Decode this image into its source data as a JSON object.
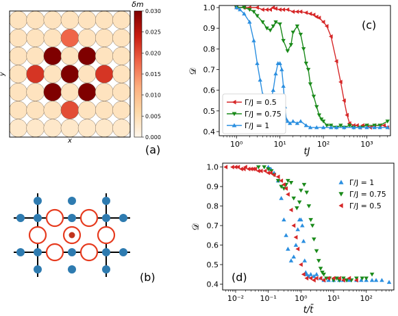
{
  "panels": {
    "a": {
      "label": "(a)",
      "xlabel": "x",
      "ylabel": "y",
      "colorbar": {
        "label": "δm",
        "ticks": [
          "0.030",
          "0.025",
          "0.020",
          "0.015",
          "0.010",
          "0.005",
          "0.000"
        ]
      }
    },
    "b": {
      "label": "(b)"
    },
    "c": {
      "label": "(c)",
      "xlabel": "tJ",
      "ylabel": "𝒟",
      "xticks": [
        "10⁰",
        "10¹",
        "10²",
        "10³"
      ],
      "yticks": [
        "0.4",
        "0.5",
        "0.6",
        "0.7",
        "0.8",
        "0.9",
        "1.0"
      ],
      "legend": [
        "Γ/J = 0.5",
        "Γ/J = 0.75",
        "Γ/J = 1"
      ]
    },
    "d": {
      "label": "(d)",
      "xlabel": "t/t̄",
      "ylabel": "𝒟",
      "xticks": [
        "10⁻²",
        "10⁻¹",
        "10⁰",
        "10¹",
        "10²"
      ],
      "yticks": [
        "0.4",
        "0.5",
        "0.6",
        "0.7",
        "0.8",
        "0.9",
        "1.0"
      ],
      "legend": [
        "Γ/J = 1",
        "Γ/J = 0.75",
        "Γ/J = 0.5"
      ]
    }
  },
  "colors": {
    "red": "#d62728",
    "green": "#1a8a1a",
    "blue": "#2b8fe0",
    "lattice_node": "#2e7bb0",
    "ring": "#e63a1e",
    "center_dot": "#c0341d"
  },
  "chart_data": [
    {
      "type": "heatmap",
      "title": "",
      "xlabel": "x",
      "ylabel": "y",
      "colorbar_label": "δm",
      "colorbar_range": [
        0.0,
        0.03
      ],
      "grid_size": [
        7,
        7
      ],
      "values": [
        [
          0.004,
          0.004,
          0.004,
          0.004,
          0.004,
          0.004,
          0.004
        ],
        [
          0.004,
          0.004,
          0.004,
          0.018,
          0.004,
          0.004,
          0.004
        ],
        [
          0.004,
          0.004,
          0.03,
          0.004,
          0.03,
          0.004,
          0.004
        ],
        [
          0.004,
          0.022,
          0.004,
          0.03,
          0.004,
          0.022,
          0.004
        ],
        [
          0.004,
          0.004,
          0.03,
          0.004,
          0.03,
          0.004,
          0.004
        ],
        [
          0.004,
          0.004,
          0.004,
          0.02,
          0.004,
          0.004,
          0.004
        ],
        [
          0.003,
          0.003,
          0.003,
          0.003,
          0.003,
          0.003,
          0.003
        ]
      ]
    },
    {
      "type": "line",
      "title": "",
      "xlabel": "tJ",
      "ylabel": "𝒟",
      "xscale": "log",
      "xlim": [
        0.4,
        3500
      ],
      "ylim": [
        0.38,
        1.01
      ],
      "legend_position": "bottom-left",
      "series": [
        {
          "name": "Γ/J = 0.5",
          "color": "#d62728",
          "marker": "triangle-left",
          "x": [
            1,
            1.5,
            2,
            3,
            4,
            5,
            6,
            7,
            8,
            10,
            12,
            15,
            20,
            25,
            30,
            40,
            50,
            60,
            70,
            80,
            100,
            120,
            150,
            200,
            250,
            300,
            350,
            400,
            500,
            600,
            700,
            800,
            1000,
            1200,
            1500,
            2000,
            2500,
            3000
          ],
          "y": [
            1.0,
            1.0,
            1.0,
            1.0,
            0.99,
            0.99,
            0.99,
            1.0,
            0.995,
            0.99,
            0.99,
            0.99,
            0.98,
            0.98,
            0.98,
            0.975,
            0.97,
            0.965,
            0.955,
            0.95,
            0.93,
            0.91,
            0.86,
            0.74,
            0.64,
            0.55,
            0.48,
            0.44,
            0.43,
            0.43,
            0.42,
            0.43,
            0.43,
            0.42,
            0.43,
            0.43,
            0.43,
            0.42
          ]
        },
        {
          "name": "Γ/J = 0.75",
          "color": "#1a8a1a",
          "marker": "triangle-down",
          "x": [
            1,
            1.5,
            2,
            2.5,
            3,
            4,
            5,
            6,
            7,
            8,
            10,
            12,
            15,
            18,
            20,
            25,
            30,
            35,
            40,
            45,
            50,
            60,
            70,
            80,
            90,
            100,
            120,
            150,
            200,
            250,
            300,
            400,
            500,
            700,
            1000,
            1500,
            2000,
            3000
          ],
          "y": [
            1.0,
            1.0,
            0.99,
            0.98,
            0.96,
            0.93,
            0.9,
            0.89,
            0.91,
            0.93,
            0.92,
            0.84,
            0.79,
            0.82,
            0.88,
            0.91,
            0.87,
            0.8,
            0.73,
            0.7,
            0.63,
            0.57,
            0.52,
            0.48,
            0.46,
            0.45,
            0.43,
            0.43,
            0.42,
            0.43,
            0.42,
            0.43,
            0.42,
            0.42,
            0.43,
            0.43,
            0.43,
            0.45
          ]
        },
        {
          "name": "Γ/J = 1",
          "color": "#2b8fe0",
          "marker": "triangle-up",
          "x": [
            1,
            1.2,
            1.5,
            2,
            2.5,
            3,
            3.5,
            4,
            5,
            6,
            7,
            8,
            9,
            10,
            11,
            12,
            13,
            14,
            15,
            17,
            20,
            25,
            30,
            40,
            50,
            70,
            100,
            150,
            200,
            300,
            500,
            700,
            1000,
            1500,
            2000,
            3000
          ],
          "y": [
            1.0,
            0.99,
            0.97,
            0.93,
            0.84,
            0.73,
            0.65,
            0.58,
            0.52,
            0.54,
            0.6,
            0.68,
            0.73,
            0.73,
            0.7,
            0.62,
            0.52,
            0.46,
            0.45,
            0.44,
            0.45,
            0.44,
            0.45,
            0.43,
            0.42,
            0.42,
            0.42,
            0.42,
            0.42,
            0.42,
            0.42,
            0.42,
            0.42,
            0.42,
            0.42,
            0.42
          ]
        }
      ]
    },
    {
      "type": "scatter",
      "title": "",
      "xlabel": "t/t̄",
      "ylabel": "𝒟",
      "xscale": "log",
      "xlim": [
        0.004,
        700
      ],
      "ylim": [
        0.37,
        1.02
      ],
      "legend_position": "top-right",
      "series": [
        {
          "name": "Γ/J = 1",
          "color": "#2b8fe0",
          "marker": "triangle-up",
          "x": [
            0.1,
            0.12,
            0.15,
            0.2,
            0.25,
            0.3,
            0.35,
            0.4,
            0.5,
            0.6,
            0.7,
            0.8,
            0.9,
            1.0,
            1.1,
            1.2,
            1.3,
            1.4,
            1.5,
            1.7,
            2,
            2.5,
            3,
            4,
            5,
            7,
            10,
            15,
            20,
            30,
            50,
            70,
            100,
            150,
            200,
            300,
            500
          ],
          "y": [
            1.0,
            0.99,
            0.97,
            0.93,
            0.84,
            0.73,
            0.65,
            0.58,
            0.52,
            0.54,
            0.6,
            0.68,
            0.73,
            0.73,
            0.7,
            0.62,
            0.52,
            0.46,
            0.45,
            0.44,
            0.45,
            0.44,
            0.45,
            0.43,
            0.42,
            0.42,
            0.42,
            0.42,
            0.42,
            0.42,
            0.42,
            0.42,
            0.42,
            0.42,
            0.42,
            0.42,
            0.41
          ]
        },
        {
          "name": "Γ/J = 0.75",
          "color": "#1a8a1a",
          "marker": "triangle-down",
          "x": [
            0.05,
            0.075,
            0.1,
            0.125,
            0.15,
            0.2,
            0.25,
            0.3,
            0.35,
            0.4,
            0.5,
            0.6,
            0.75,
            0.9,
            1.0,
            1.25,
            1.5,
            1.75,
            2,
            2.25,
            2.5,
            3,
            3.5,
            4,
            4.5,
            5,
            6,
            7.5,
            10,
            12.5,
            15,
            20,
            25,
            35,
            50,
            75,
            100,
            150
          ],
          "y": [
            1.0,
            1.0,
            0.99,
            0.98,
            0.96,
            0.93,
            0.9,
            0.89,
            0.91,
            0.93,
            0.92,
            0.84,
            0.79,
            0.82,
            0.88,
            0.91,
            0.87,
            0.8,
            0.73,
            0.7,
            0.63,
            0.57,
            0.52,
            0.48,
            0.46,
            0.45,
            0.43,
            0.43,
            0.42,
            0.43,
            0.42,
            0.43,
            0.42,
            0.42,
            0.43,
            0.43,
            0.43,
            0.45
          ]
        },
        {
          "name": "Γ/J = 0.5",
          "color": "#d62728",
          "marker": "triangle-left",
          "x": [
            0.005,
            0.008,
            0.01,
            0.012,
            0.015,
            0.018,
            0.02,
            0.025,
            0.03,
            0.035,
            0.04,
            0.05,
            0.06,
            0.08,
            0.1,
            0.12,
            0.15,
            0.2,
            0.25,
            0.3,
            0.35,
            0.4,
            0.5,
            0.6,
            0.7,
            0.8,
            1.0,
            1.2,
            1.5,
            2,
            2.5,
            3,
            4,
            5,
            7,
            10,
            15,
            20,
            30,
            50
          ],
          "y": [
            1.0,
            1.0,
            1.0,
            1.0,
            0.99,
            0.99,
            1.0,
            0.99,
            0.99,
            0.99,
            0.99,
            0.98,
            0.98,
            0.98,
            0.97,
            0.97,
            0.96,
            0.95,
            0.93,
            0.91,
            0.89,
            0.86,
            0.78,
            0.7,
            0.64,
            0.58,
            0.5,
            0.45,
            0.43,
            0.43,
            0.42,
            0.43,
            0.43,
            0.42,
            0.43,
            0.43,
            0.43,
            0.42,
            0.43,
            0.42
          ]
        }
      ]
    }
  ]
}
